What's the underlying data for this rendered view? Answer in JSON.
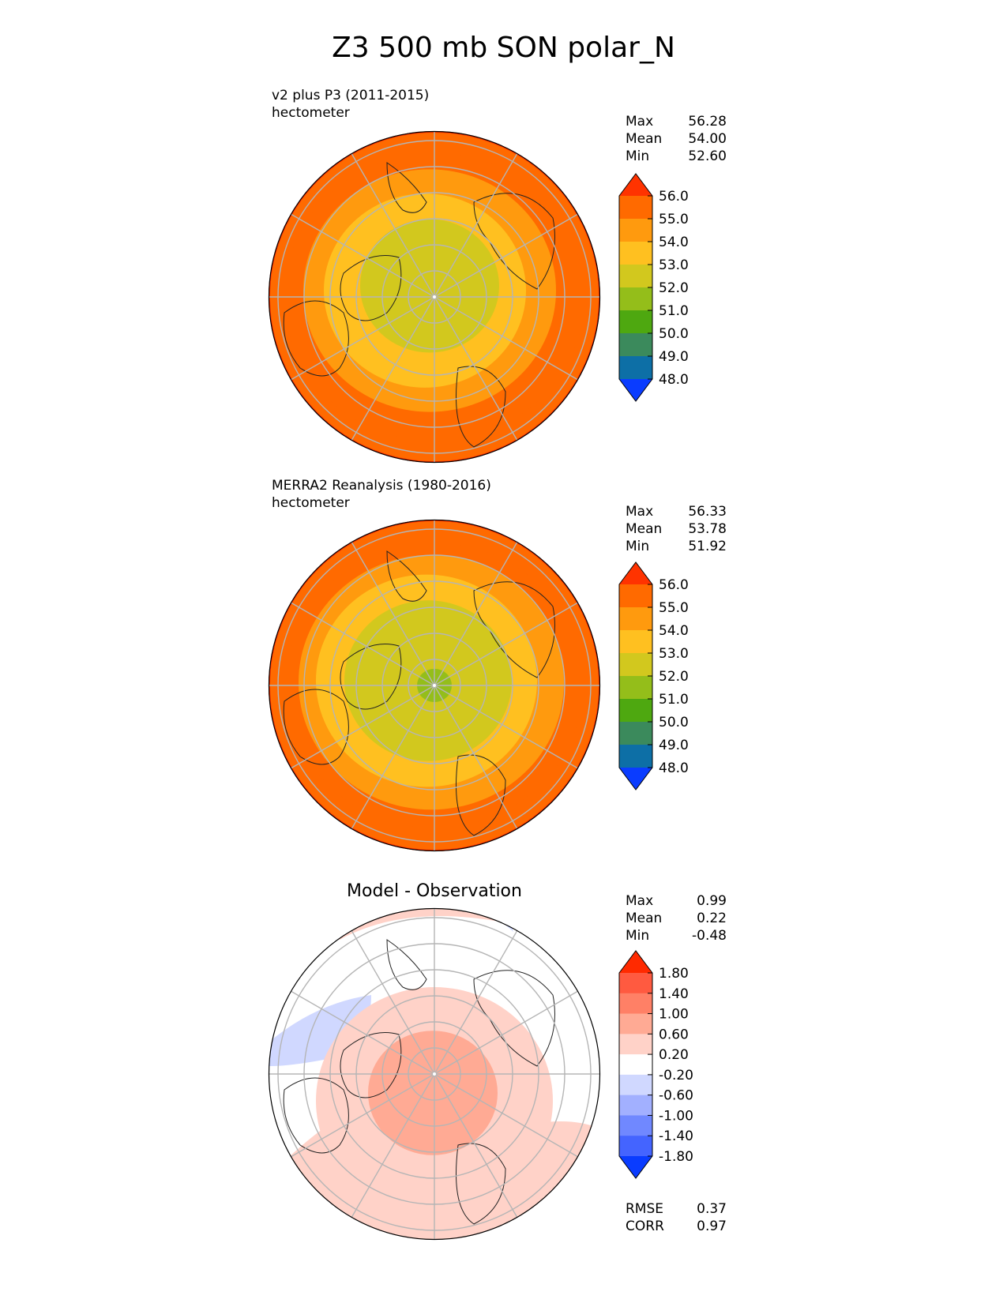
{
  "title": "Z3 500 mb SON polar_N",
  "panels": [
    {
      "title_line1": "v2 plus P3 (2011-2015)",
      "title_line2": "hectometer",
      "stats": [
        {
          "label": "Max",
          "value": "56.28"
        },
        {
          "label": "Mean",
          "value": "54.00"
        },
        {
          "label": "Min",
          "value": "52.60"
        }
      ]
    },
    {
      "title_line1": "MERRA2 Reanalysis (1980-2016)",
      "title_line2": "hectometer",
      "stats": [
        {
          "label": "Max",
          "value": "56.33"
        },
        {
          "label": "Mean",
          "value": "53.78"
        },
        {
          "label": "Min",
          "value": "51.92"
        }
      ]
    },
    {
      "title": "Model - Observation",
      "stats": [
        {
          "label": "Max",
          "value": "0.99"
        },
        {
          "label": "Mean",
          "value": "0.22"
        },
        {
          "label": "Min",
          "value": "-0.48"
        }
      ],
      "metrics": [
        {
          "label": "RMSE",
          "value": "0.37"
        },
        {
          "label": "CORR",
          "value": "0.97"
        }
      ]
    }
  ],
  "chart_data": [
    {
      "type": "heatmap",
      "projection": "north polar stereographic",
      "title": "v2 plus P3 (2011-2015)",
      "units": "hectometer",
      "colorbar": {
        "ticks": [
          "56.0",
          "55.0",
          "54.0",
          "53.0",
          "52.0",
          "51.0",
          "50.0",
          "49.0",
          "48.0"
        ],
        "colors": [
          "#ff3300",
          "#ff6a00",
          "#ff9a0e",
          "#ffc020",
          "#d2c81e",
          "#94be1a",
          "#4ea810",
          "#3b8a5c",
          "#0d6fa6",
          "#0a3cff"
        ],
        "extend": "both"
      },
      "rings": [
        {
          "level": "55.5",
          "color": "#ff6a00"
        },
        {
          "level": "54.5",
          "color": "#ff9a0e"
        },
        {
          "level": "53.5",
          "color": "#ffc020"
        },
        {
          "level": "52.5",
          "color": "#d2c81e"
        }
      ]
    },
    {
      "type": "heatmap",
      "projection": "north polar stereographic",
      "title": "MERRA2 Reanalysis (1980-2016)",
      "units": "hectometer",
      "colorbar": {
        "ticks": [
          "56.0",
          "55.0",
          "54.0",
          "53.0",
          "52.0",
          "51.0",
          "50.0",
          "49.0",
          "48.0"
        ],
        "colors": [
          "#ff3300",
          "#ff6a00",
          "#ff9a0e",
          "#ffc020",
          "#d2c81e",
          "#94be1a",
          "#4ea810",
          "#3b8a5c",
          "#0d6fa6",
          "#0a3cff"
        ],
        "extend": "both"
      },
      "rings": [
        {
          "level": "55.5",
          "color": "#ff6a00"
        },
        {
          "level": "54.5",
          "color": "#ff9a0e"
        },
        {
          "level": "53.5",
          "color": "#ffc020"
        },
        {
          "level": "52.5",
          "color": "#d2c81e"
        },
        {
          "level": "52.0",
          "color": "#94be1a"
        }
      ]
    },
    {
      "type": "heatmap",
      "projection": "north polar stereographic",
      "title": "Model - Observation",
      "colorbar": {
        "ticks": [
          "1.80",
          "1.40",
          "1.00",
          "0.60",
          "0.20",
          "-0.20",
          "-0.60",
          "-1.00",
          "-1.40",
          "-1.80"
        ],
        "colors": [
          "#ff2a00",
          "#ff5a40",
          "#ff8066",
          "#ffaa94",
          "#ffd2c8",
          "#ffffff",
          "#d0d8ff",
          "#a2b0ff",
          "#7088ff",
          "#4464ff",
          "#0a3cff"
        ],
        "extend": "both"
      },
      "rings": [
        {
          "level": "0.40",
          "color": "#ffd2c8"
        },
        {
          "level": "0.80",
          "color": "#ffaa94"
        }
      ]
    }
  ]
}
